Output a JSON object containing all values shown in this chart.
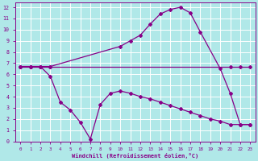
{
  "xlabel": "Windchill (Refroidissement éolien,°C)",
  "bg_color": "#b0e8e8",
  "grid_color": "#ffffff",
  "line_color": "#880088",
  "xlim": [
    -0.5,
    23.5
  ],
  "ylim": [
    0,
    12.4
  ],
  "xticks": [
    0,
    1,
    2,
    3,
    4,
    5,
    6,
    7,
    8,
    9,
    10,
    11,
    12,
    13,
    14,
    15,
    16,
    17,
    18,
    19,
    20,
    21,
    22,
    23
  ],
  "yticks": [
    0,
    1,
    2,
    3,
    4,
    5,
    6,
    7,
    8,
    9,
    10,
    11,
    12
  ],
  "series1_x": [
    0,
    1,
    2,
    3,
    21,
    22,
    23
  ],
  "series1_y": [
    6.7,
    6.7,
    6.7,
    6.7,
    6.7,
    6.7,
    6.7
  ],
  "series2_x": [
    0,
    1,
    2,
    3,
    10,
    11,
    12,
    13,
    14,
    15,
    16,
    17,
    18,
    20,
    21,
    22,
    23
  ],
  "series2_y": [
    6.7,
    6.7,
    6.7,
    6.7,
    8.5,
    9.0,
    9.5,
    10.5,
    11.4,
    11.8,
    12.0,
    11.5,
    9.8,
    6.5,
    4.3,
    1.5,
    1.5
  ],
  "series3_x": [
    0,
    1,
    2,
    3,
    4,
    5,
    6,
    7,
    8,
    9,
    10,
    11,
    12,
    13,
    14,
    15,
    16,
    17,
    18,
    19,
    20,
    21,
    22,
    23
  ],
  "series3_y": [
    6.7,
    6.7,
    6.7,
    5.8,
    3.5,
    2.8,
    1.7,
    0.2,
    3.3,
    4.3,
    4.5,
    4.3,
    4.0,
    3.8,
    3.5,
    3.2,
    2.9,
    2.6,
    2.3,
    2.0,
    1.8,
    1.5,
    1.5,
    1.5
  ]
}
